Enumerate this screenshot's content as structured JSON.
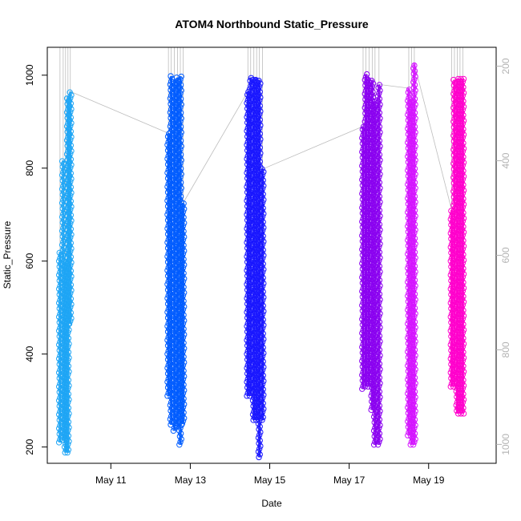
{
  "chart_data": {
    "type": "scatter",
    "title": "ATOM4 Northbound Static_Pressure",
    "xlabel": "Date",
    "ylabel": "Static_Pressure",
    "x_ticks": [
      "May 11",
      "May 13",
      "May 15",
      "May 17",
      "May 19"
    ],
    "x_tick_days": [
      11,
      13,
      15,
      17,
      19
    ],
    "xlim_days": [
      9.4,
      20.7
    ],
    "ylim": [
      165,
      1060
    ],
    "y_ticks": [
      200,
      400,
      600,
      800,
      1000
    ],
    "right_axis": {
      "range_top": 160,
      "range_bottom": 1040,
      "ticks": [
        200,
        400,
        600,
        800,
        1000
      ],
      "color": "#b3b3b3"
    },
    "grid": false,
    "marker": "open-circle",
    "series": [
      {
        "color": "#1ea5f5",
        "profiles": [
          {
            "day": 9.72,
            "min": 210,
            "max": 620
          },
          {
            "day": 9.8,
            "min": 215,
            "max": 817
          },
          {
            "day": 9.86,
            "min": 188,
            "max": 600
          },
          {
            "day": 9.92,
            "min": 188,
            "max": 955
          },
          {
            "day": 9.98,
            "min": 465,
            "max": 965
          }
        ]
      },
      {
        "color": "#005cff",
        "profiles": [
          {
            "day": 12.45,
            "min": 310,
            "max": 875
          },
          {
            "day": 12.52,
            "min": 248,
            "max": 998
          },
          {
            "day": 12.6,
            "min": 235,
            "max": 990
          },
          {
            "day": 12.68,
            "min": 245,
            "max": 995
          },
          {
            "day": 12.75,
            "min": 205,
            "max": 998
          },
          {
            "day": 12.82,
            "min": 250,
            "max": 725
          }
        ]
      },
      {
        "color": "#1a17ff",
        "profiles": [
          {
            "day": 14.45,
            "min": 310,
            "max": 965
          },
          {
            "day": 14.52,
            "min": 310,
            "max": 995
          },
          {
            "day": 14.6,
            "min": 258,
            "max": 995
          },
          {
            "day": 14.67,
            "min": 258,
            "max": 995
          },
          {
            "day": 14.74,
            "min": 178,
            "max": 990
          },
          {
            "day": 14.82,
            "min": 258,
            "max": 798
          }
        ]
      },
      {
        "color": "#8a00f0",
        "profiles": [
          {
            "day": 17.35,
            "min": 325,
            "max": 890
          },
          {
            "day": 17.42,
            "min": 330,
            "max": 1002
          },
          {
            "day": 17.5,
            "min": 330,
            "max": 995
          },
          {
            "day": 17.58,
            "min": 280,
            "max": 990
          },
          {
            "day": 17.65,
            "min": 205,
            "max": 945
          },
          {
            "day": 17.75,
            "min": 205,
            "max": 980
          }
        ]
      },
      {
        "color": "#d414ff",
        "profiles": [
          {
            "day": 18.5,
            "min": 225,
            "max": 972
          },
          {
            "day": 18.57,
            "min": 205,
            "max": 948
          },
          {
            "day": 18.64,
            "min": 205,
            "max": 1025
          }
        ]
      },
      {
        "color": "#ff00cc",
        "profiles": [
          {
            "day": 19.58,
            "min": 330,
            "max": 710
          },
          {
            "day": 19.65,
            "min": 330,
            "max": 990
          },
          {
            "day": 19.72,
            "min": 272,
            "max": 993
          },
          {
            "day": 19.79,
            "min": 272,
            "max": 993
          },
          {
            "day": 19.86,
            "min": 272,
            "max": 993
          }
        ]
      }
    ],
    "connector_color": "#bdbdbd"
  }
}
